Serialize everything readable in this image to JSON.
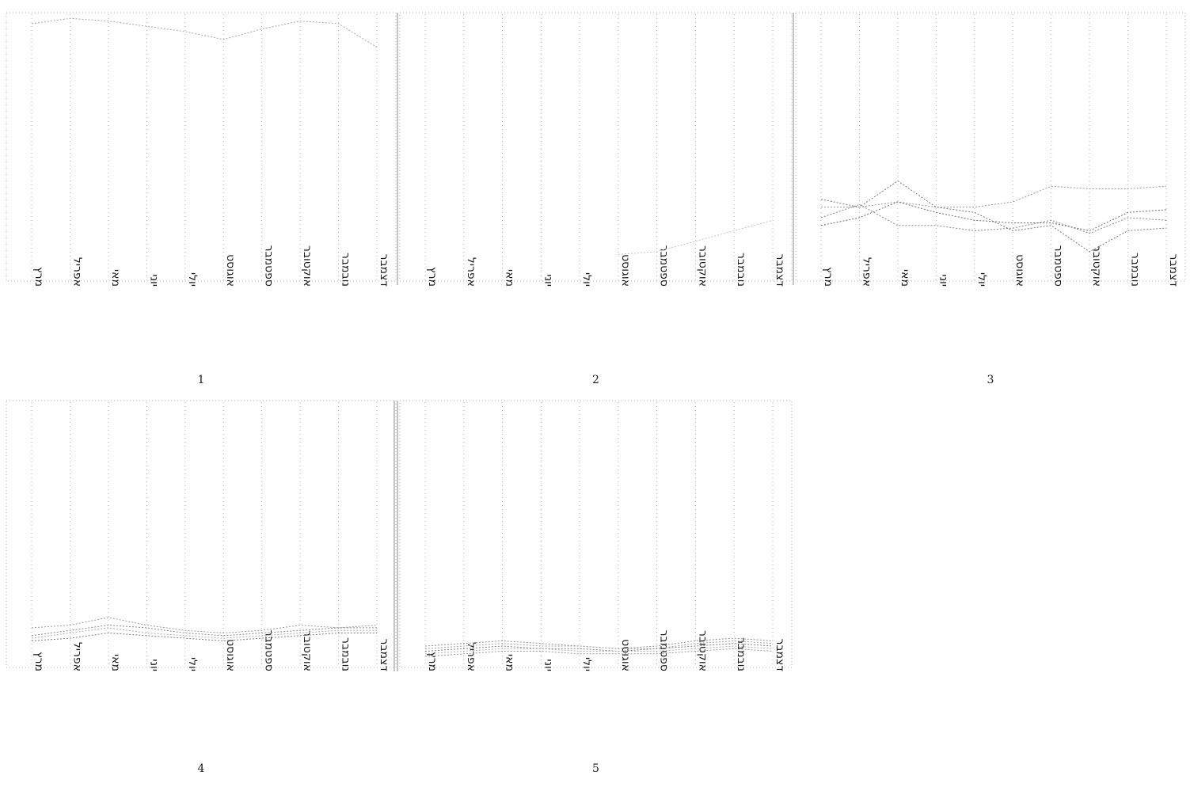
{
  "chart_data": [
    {
      "type": "line",
      "panel_number": "1",
      "categories": [
        "מרץ",
        "אפריל",
        "מאי",
        "יוני",
        "יולי",
        "אוגוסט",
        "ספטמבר",
        "אוקטובר",
        "נובמבר",
        "דצמבר"
      ],
      "ylim": [
        0,
        100
      ],
      "grid": "vertical",
      "series": [
        {
          "values": [
            97,
            99,
            98,
            96,
            94,
            91,
            95,
            98,
            97,
            88
          ],
          "color": "#a8a8a8"
        }
      ]
    },
    {
      "type": "line",
      "panel_number": "2",
      "categories": [
        "מרץ",
        "אפריל",
        "מאי",
        "יוני",
        "יולי",
        "אוגוסט",
        "ספטמבר",
        "אוקטובר",
        "נובמבר",
        "דצמבר"
      ],
      "ylim": [
        0,
        100
      ],
      "grid": "vertical",
      "series": [
        {
          "values": [
            null,
            null,
            null,
            null,
            null,
            9,
            10,
            14,
            18,
            22
          ],
          "color": "#c4c4c4"
        }
      ]
    },
    {
      "type": "line",
      "panel_number": "3",
      "categories": [
        "מרץ",
        "אפריל",
        "מאי",
        "יוני",
        "יולי",
        "אוגוסט",
        "ספטמבר",
        "אוקטובר",
        "נובמבר",
        "דצמבר"
      ],
      "ylim": [
        0,
        100
      ],
      "grid": "vertical",
      "series": [
        {
          "values": [
            30,
            27,
            37,
            27,
            25,
            18,
            20,
            10,
            18,
            19
          ],
          "color": "#7a7a7a"
        },
        {
          "values": [
            27,
            27,
            29,
            27,
            27,
            29,
            35,
            34,
            34,
            35
          ],
          "color": "#999999"
        },
        {
          "values": [
            23,
            28,
            20,
            20,
            18,
            19,
            22,
            17,
            23,
            22
          ],
          "color": "#888888"
        },
        {
          "values": [
            20,
            23,
            29,
            25,
            22,
            21,
            21,
            18,
            25,
            26
          ],
          "color": "#6e6e6e"
        }
      ]
    },
    {
      "type": "line",
      "panel_number": "4",
      "categories": [
        "מרץ",
        "אפריל",
        "מאי",
        "יוני",
        "יולי",
        "אוגוסט",
        "ספטמבר",
        "אוקטובר",
        "נובמבר",
        "דצמבר"
      ],
      "ylim": [
        0,
        100
      ],
      "grid": "vertical",
      "series": [
        {
          "values": [
            14,
            15,
            18,
            15,
            13,
            12,
            13,
            15,
            14,
            15
          ],
          "color": "#9a9a9a"
        },
        {
          "values": [
            11,
            13,
            15,
            14,
            12,
            11,
            12,
            13,
            14,
            14
          ],
          "color": "#8a8a8a"
        },
        {
          "values": [
            10,
            12,
            14,
            12,
            11,
            10,
            11,
            12,
            13,
            13
          ],
          "color": "#aaaaaa"
        },
        {
          "values": [
            9,
            10,
            12,
            11,
            10,
            9,
            10,
            11,
            12,
            12
          ],
          "color": "#7e7e7e"
        }
      ]
    },
    {
      "type": "line",
      "panel_number": "5",
      "categories": [
        "מרץ",
        "אפריל",
        "מאי",
        "יוני",
        "יולי",
        "אוגוסט",
        "ספטמבר",
        "אוקטובר",
        "נובמבר",
        "דצמבר"
      ],
      "ylim": [
        0,
        100
      ],
      "grid": "vertical",
      "series": [
        {
          "values": [
            7,
            8,
            9,
            8,
            7,
            6,
            7,
            9,
            10,
            9
          ],
          "color": "#909090"
        },
        {
          "values": [
            6,
            7,
            8,
            7,
            7,
            6,
            6,
            8,
            9,
            8
          ],
          "color": "#a0a0a0"
        },
        {
          "values": [
            5,
            6,
            7,
            6,
            6,
            5,
            6,
            7,
            8,
            7
          ],
          "color": "#808080"
        },
        {
          "values": [
            4,
            5,
            6,
            6,
            5,
            5,
            5,
            6,
            7,
            6
          ],
          "color": "#b0b0b0"
        },
        {
          "values": [
            3,
            4,
            5,
            5,
            4,
            4,
            4,
            5,
            6,
            5
          ],
          "color": "#989898"
        }
      ]
    }
  ]
}
